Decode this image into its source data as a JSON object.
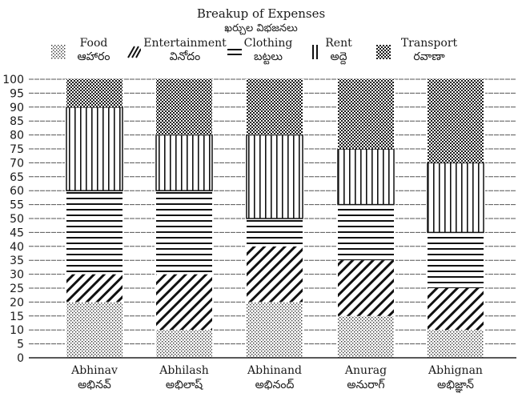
{
  "chart_data": {
    "type": "bar",
    "stacked": true,
    "title": "Breakup of Expenses",
    "subtitle": "ఖర్చుల విభజనలు",
    "xlabel": "",
    "ylabel": "",
    "ylim": [
      0,
      100
    ],
    "yticks": [
      0,
      5,
      10,
      15,
      20,
      25,
      30,
      35,
      40,
      45,
      50,
      55,
      60,
      65,
      70,
      75,
      80,
      85,
      90,
      95,
      100
    ],
    "grid": "horizontal dashed",
    "legend_position": "top",
    "categories": [
      "Abhinav",
      "Abhilash",
      "Abhinand",
      "Anurag",
      "Abhignan"
    ],
    "categories_telugu": [
      "అభినవ్",
      "అభిలాష్",
      "అభినంద్",
      "అనురాగ్",
      "అభిజ్ఞాన్"
    ],
    "series": [
      {
        "name": "Food",
        "name_telugu": "ఆహారం",
        "pattern": "dots",
        "values": [
          20,
          10,
          20,
          15,
          10
        ]
      },
      {
        "name": "Entertainment",
        "name_telugu": "వినోదం",
        "pattern": "diagonal",
        "values": [
          10,
          20,
          20,
          20,
          15
        ]
      },
      {
        "name": "Clothing",
        "name_telugu": "బట్టలు",
        "pattern": "horizontal",
        "values": [
          30,
          30,
          10,
          20,
          20
        ]
      },
      {
        "name": "Rent",
        "name_telugu": "అద్దె",
        "pattern": "vertical",
        "values": [
          30,
          20,
          30,
          20,
          25
        ]
      },
      {
        "name": "Transport",
        "name_telugu": "రవాణా",
        "pattern": "checker",
        "values": [
          10,
          20,
          20,
          25,
          30
        ]
      }
    ]
  }
}
